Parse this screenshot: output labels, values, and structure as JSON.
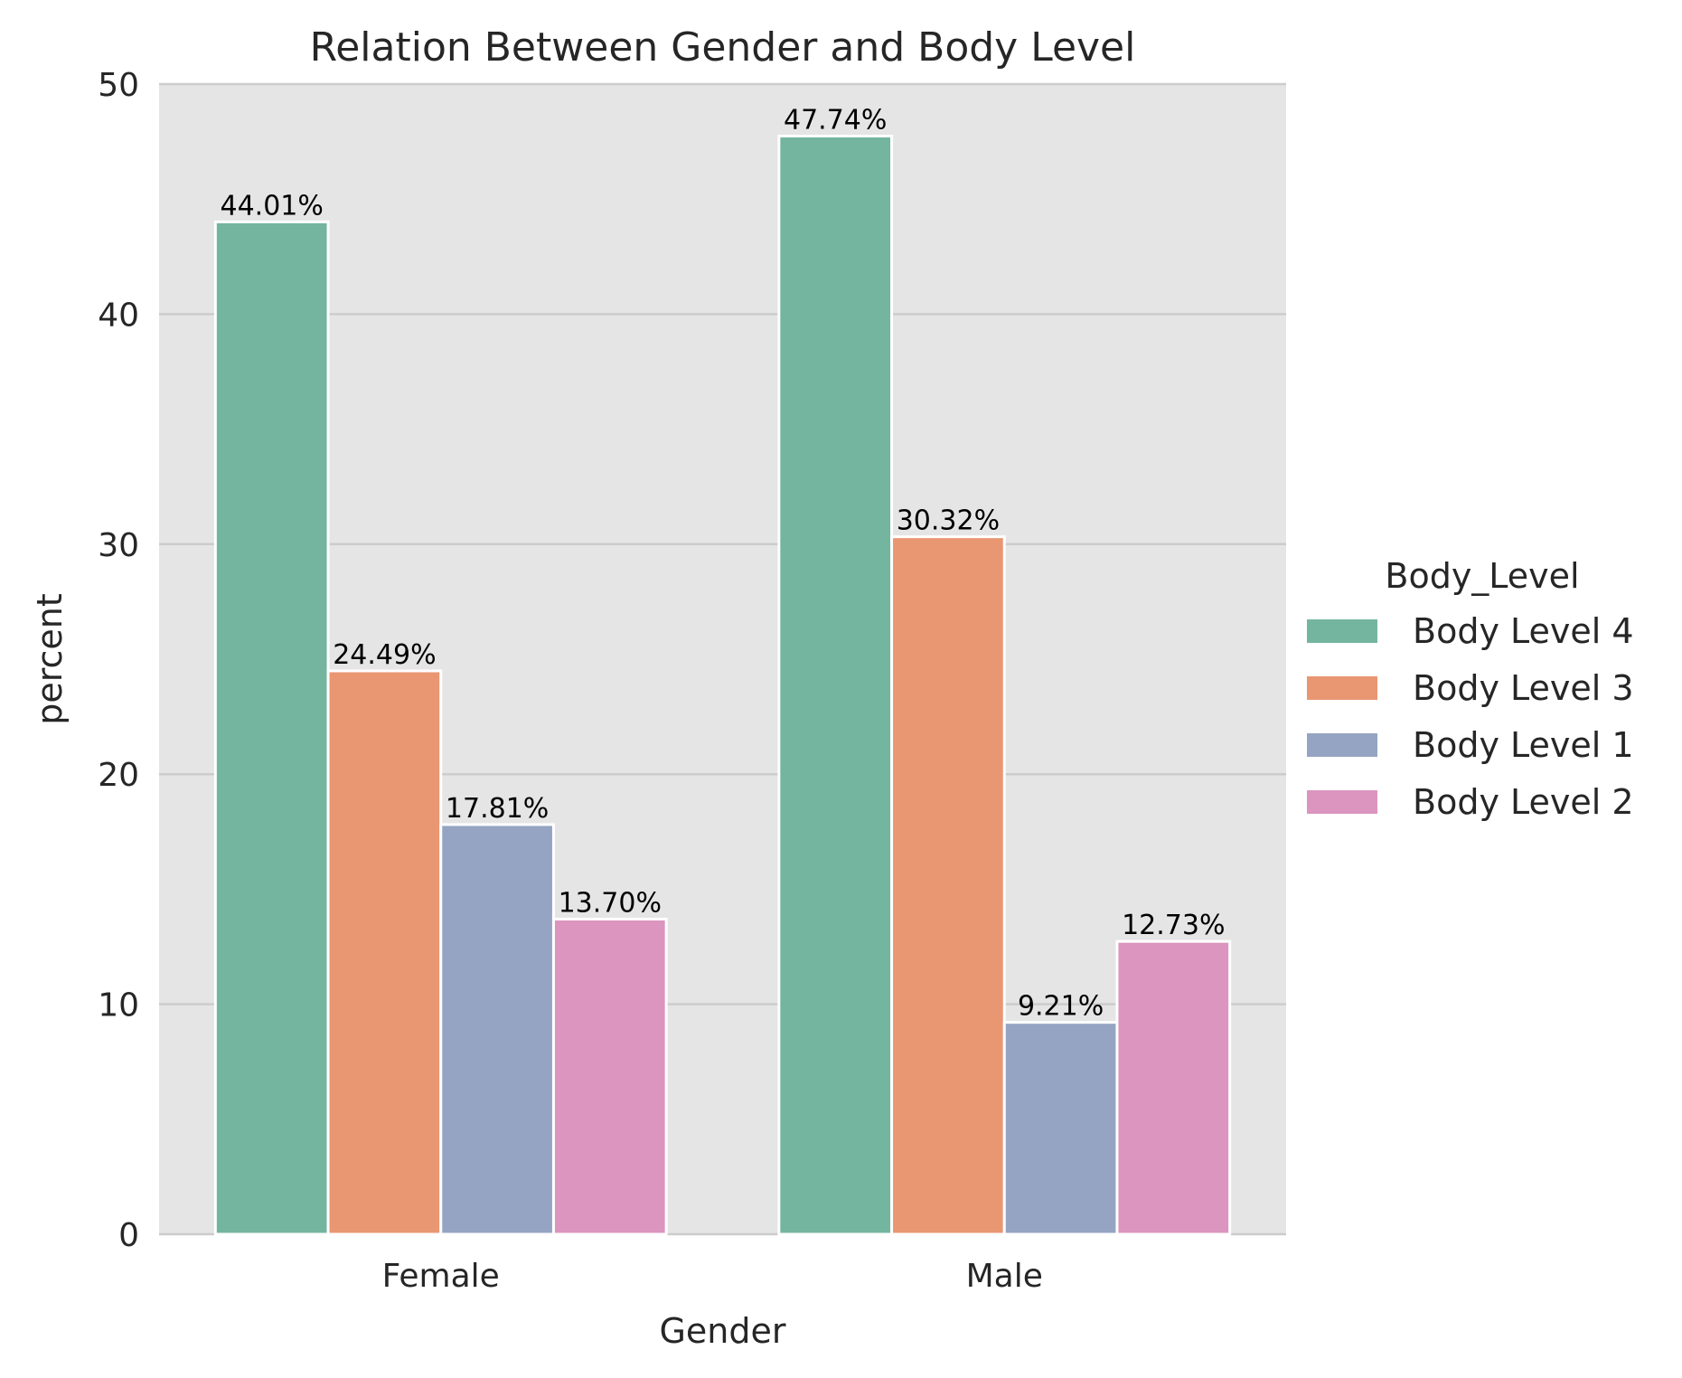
{
  "chart_data": {
    "type": "bar",
    "title": "Relation Between Gender and Body Level",
    "xlabel": "Gender",
    "ylabel": "percent",
    "categories": [
      "Female",
      "Male"
    ],
    "ylim": [
      0,
      50
    ],
    "yticks": [
      0,
      10,
      20,
      30,
      40,
      50
    ],
    "grid": true,
    "legend": {
      "title": "Body_Level",
      "placement": "right"
    },
    "series": [
      {
        "name": "Body Level 4",
        "color": "#74B59F",
        "values": [
          44.01,
          47.74
        ],
        "labels": [
          "44.01%",
          "47.74%"
        ]
      },
      {
        "name": "Body Level 3",
        "color": "#E99672",
        "values": [
          24.49,
          30.32
        ],
        "labels": [
          "24.49%",
          "30.32%"
        ]
      },
      {
        "name": "Body Level 1",
        "color": "#95A4C2",
        "values": [
          17.81,
          9.21
        ],
        "labels": [
          "17.81%",
          "9.21%"
        ]
      },
      {
        "name": "Body Level 2",
        "color": "#DB95BE",
        "values": [
          13.7,
          12.73
        ],
        "labels": [
          "13.70%",
          "12.73%"
        ]
      }
    ]
  }
}
